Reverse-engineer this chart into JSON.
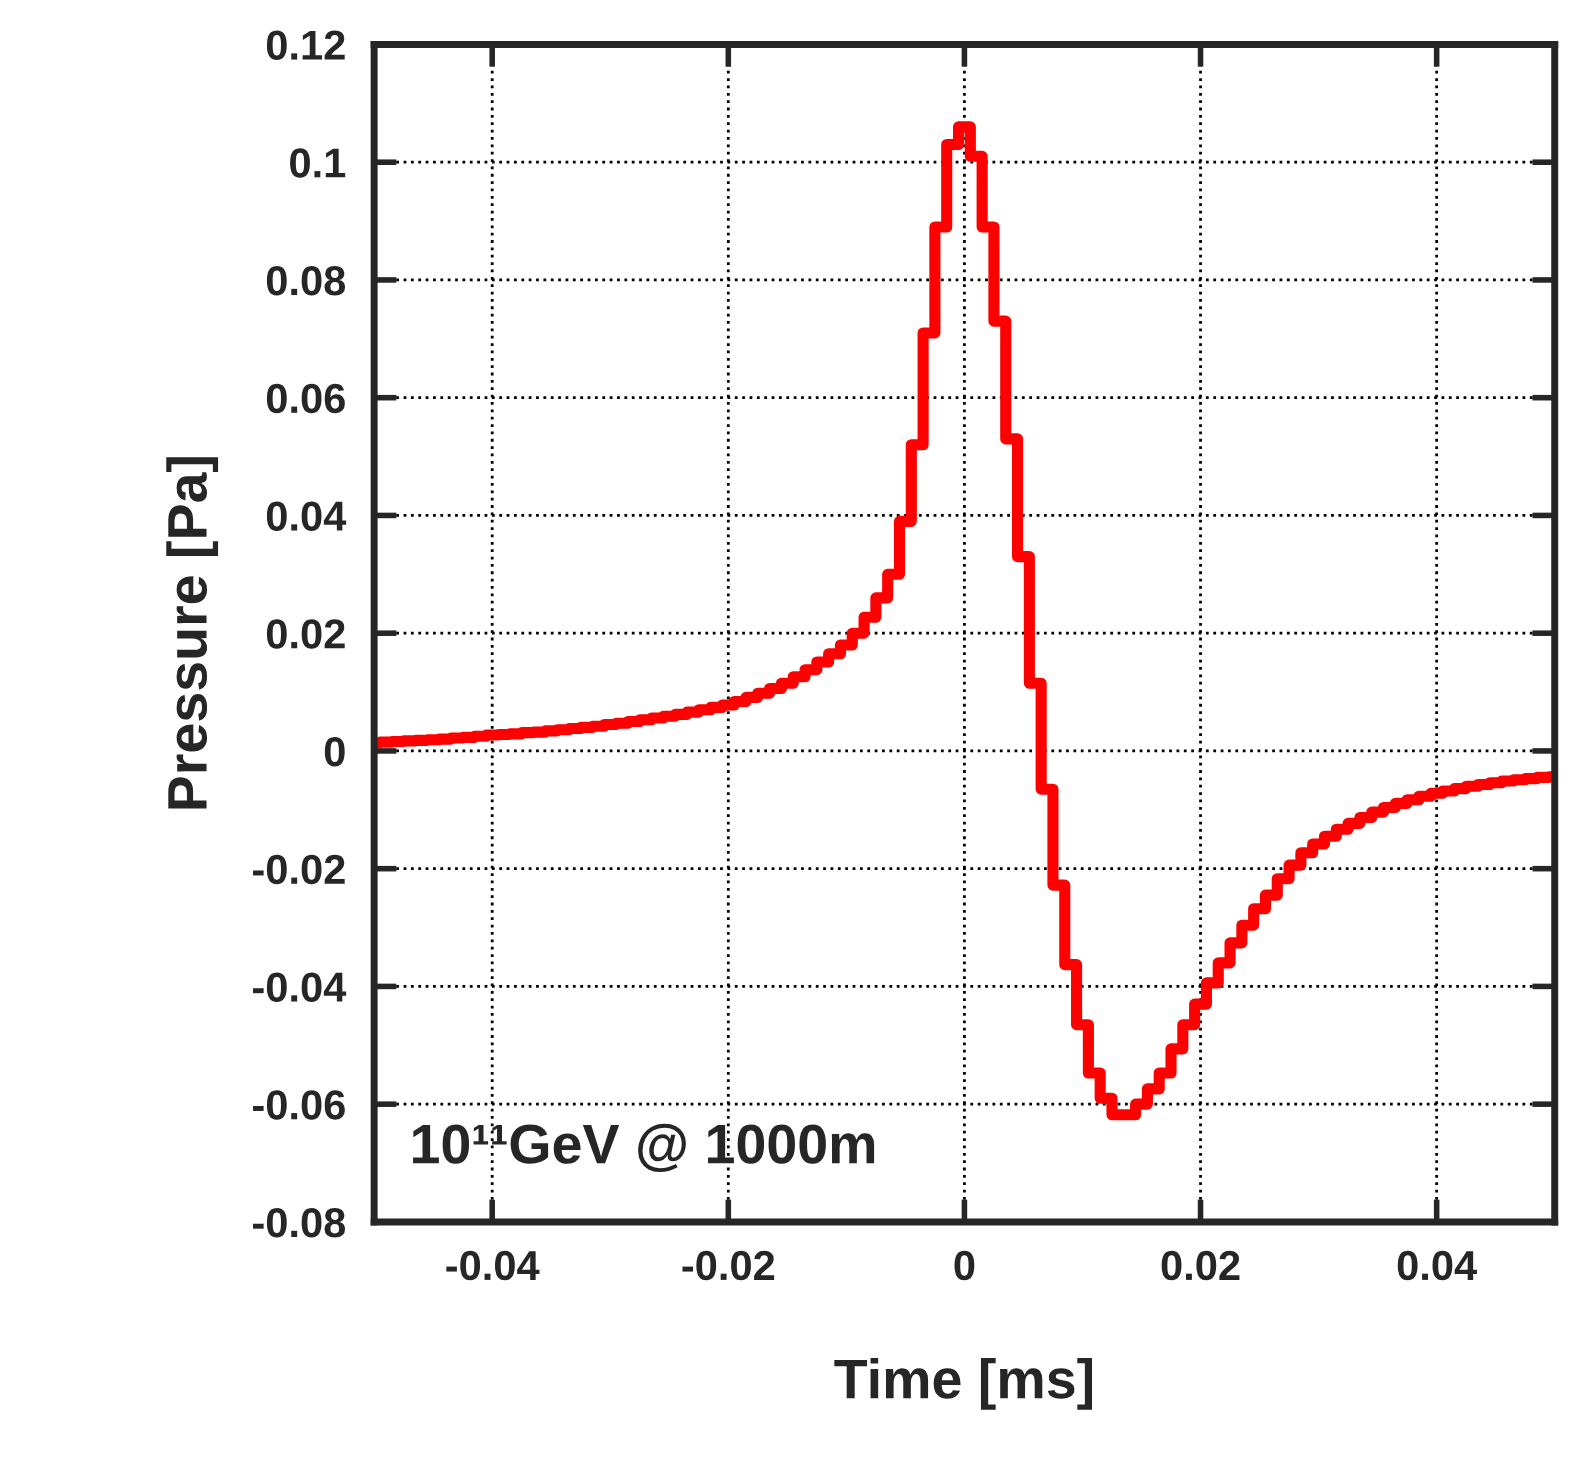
{
  "chart_data": {
    "type": "step",
    "xlabel": "Time [ms]",
    "ylabel": "Pressure [Pa]",
    "annotations": [
      "10¹¹GeV @ 1000m"
    ],
    "x": [
      -0.05,
      -0.049,
      -0.048,
      -0.047,
      -0.046,
      -0.045,
      -0.044,
      -0.043,
      -0.042,
      -0.041,
      -0.04,
      -0.039,
      -0.038,
      -0.037,
      -0.036,
      -0.035,
      -0.034,
      -0.033,
      -0.032,
      -0.031,
      -0.03,
      -0.029,
      -0.028,
      -0.027,
      -0.026,
      -0.025,
      -0.024,
      -0.023,
      -0.022,
      -0.021,
      -0.02,
      -0.019,
      -0.018,
      -0.017,
      -0.016,
      -0.015,
      -0.014,
      -0.013,
      -0.012,
      -0.011,
      -0.01,
      -0.009,
      -0.008,
      -0.007,
      -0.006,
      -0.005,
      -0.004,
      -0.003,
      -0.002,
      -0.001,
      0,
      0.001,
      0.002,
      0.003,
      0.004,
      0.005,
      0.006,
      0.007,
      0.008,
      0.009,
      0.01,
      0.011,
      0.012,
      0.013,
      0.014,
      0.015,
      0.016,
      0.017,
      0.018,
      0.019,
      0.02,
      0.021,
      0.022,
      0.023,
      0.024,
      0.025,
      0.026,
      0.027,
      0.028,
      0.029,
      0.03,
      0.031,
      0.032,
      0.033,
      0.034,
      0.035,
      0.036,
      0.037,
      0.038,
      0.039,
      0.04,
      0.041,
      0.042,
      0.043,
      0.044,
      0.045,
      0.046,
      0.047,
      0.048,
      0.049,
      0.05
    ],
    "series": [
      {
        "color": "#ff0000",
        "values": [
          0.0014,
          0.0015,
          0.0016,
          0.0017,
          0.0018,
          0.0019,
          0.002,
          0.0022,
          0.0023,
          0.0025,
          0.0027,
          0.0028,
          0.0029,
          0.0031,
          0.0032,
          0.0034,
          0.0036,
          0.0038,
          0.004,
          0.0042,
          0.0045,
          0.0047,
          0.005,
          0.0053,
          0.0056,
          0.0059,
          0.0062,
          0.0066,
          0.007,
          0.0074,
          0.0078,
          0.0084,
          0.0091,
          0.0098,
          0.0106,
          0.0115,
          0.0126,
          0.0138,
          0.0151,
          0.0165,
          0.018,
          0.02,
          0.0227,
          0.026,
          0.03,
          0.039,
          0.052,
          0.071,
          0.089,
          0.103,
          0.106,
          0.101,
          0.089,
          0.073,
          0.053,
          0.033,
          0.0115,
          -0.0065,
          -0.0228,
          -0.0363,
          -0.0465,
          -0.0547,
          -0.059,
          -0.0618,
          -0.0618,
          -0.06,
          -0.0574,
          -0.0547,
          -0.0506,
          -0.0465,
          -0.043,
          -0.0394,
          -0.036,
          -0.0326,
          -0.0296,
          -0.0268,
          -0.0245,
          -0.0217,
          -0.0194,
          -0.0173,
          -0.0158,
          -0.0145,
          -0.0133,
          -0.0123,
          -0.0113,
          -0.0104,
          -0.0096,
          -0.0089,
          -0.0083,
          -0.0077,
          -0.0072,
          -0.0068,
          -0.0064,
          -0.006,
          -0.0057,
          -0.0054,
          -0.0051,
          -0.0049,
          -0.0047,
          -0.0045,
          -0.0044
        ]
      }
    ],
    "xlim": [
      -0.05,
      0.05
    ],
    "xticks": [
      -0.04,
      -0.02,
      0,
      0.02,
      0.04
    ],
    "ylim": [
      -0.08,
      0.12
    ],
    "yticks": [
      -0.08,
      -0.06,
      -0.04,
      -0.02,
      0,
      0.02,
      0.04,
      0.06,
      0.08,
      0.1,
      0.12
    ],
    "grid": true,
    "line_style": "solid"
  }
}
